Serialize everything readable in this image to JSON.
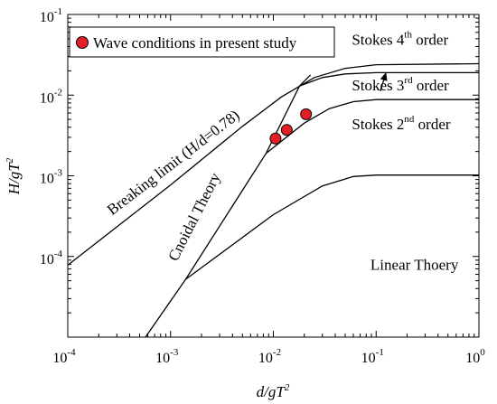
{
  "chart_data": {
    "type": "line",
    "x_axis": {
      "label_base": "d/gT",
      "label_sup": "2",
      "scale": "log",
      "range": [
        0.0001,
        1
      ],
      "ticks": [
        {
          "value": 0.0001,
          "base": "10",
          "exp": "-4"
        },
        {
          "value": 0.001,
          "base": "10",
          "exp": "-3"
        },
        {
          "value": 0.01,
          "base": "10",
          "exp": "-2"
        },
        {
          "value": 0.1,
          "base": "10",
          "exp": "-1"
        },
        {
          "value": 1,
          "base": "10",
          "exp": "0"
        }
      ]
    },
    "y_axis": {
      "label_base": "H/gT",
      "label_sup": "2",
      "scale": "log",
      "range": [
        1e-05,
        0.1
      ],
      "ticks": [
        {
          "value": 0.0001,
          "base": "10",
          "exp": "-4"
        },
        {
          "value": 0.001,
          "base": "10",
          "exp": "-3"
        },
        {
          "value": 0.01,
          "base": "10",
          "exp": "-2"
        },
        {
          "value": 0.1,
          "base": "10",
          "exp": "-1"
        }
      ]
    },
    "grid": false,
    "legend": {
      "position": "top-left",
      "entries": [
        {
          "label": "Wave conditions in present study",
          "marker": "circle",
          "color": "#e31e24"
        }
      ]
    },
    "points": [
      {
        "x": 0.0105,
        "y": 0.0029
      },
      {
        "x": 0.0135,
        "y": 0.0037
      },
      {
        "x": 0.0208,
        "y": 0.0058
      }
    ],
    "curves": [
      {
        "id": "breaking-limit",
        "points": [
          [
            0.0001,
            7.8e-05
          ],
          [
            0.001,
            0.00077
          ],
          [
            0.005,
            0.0041
          ],
          [
            0.012,
            0.0095
          ],
          [
            0.025,
            0.0165
          ],
          [
            0.05,
            0.0215
          ],
          [
            0.1,
            0.0238
          ],
          [
            1,
            0.0245
          ]
        ]
      },
      {
        "id": "stokes-4th-3rd-boundary",
        "points": [
          [
            0.018,
            0.013
          ],
          [
            0.03,
            0.0165
          ],
          [
            0.05,
            0.0183
          ],
          [
            0.1,
            0.019
          ],
          [
            1,
            0.019
          ]
        ]
      },
      {
        "id": "stokes-3rd-2nd-boundary",
        "points": [
          [
            0.0085,
            0.0019
          ],
          [
            0.02,
            0.0045
          ],
          [
            0.035,
            0.0068
          ],
          [
            0.06,
            0.0083
          ],
          [
            0.1,
            0.0088
          ],
          [
            1,
            0.0088
          ]
        ]
      },
      {
        "id": "stokes-2nd-linear-boundary",
        "points": [
          [
            0.0014,
            5.2e-05
          ],
          [
            0.01,
            0.00033
          ],
          [
            0.03,
            0.00075
          ],
          [
            0.06,
            0.00098
          ],
          [
            0.1,
            0.00102
          ],
          [
            1,
            0.00102
          ]
        ]
      },
      {
        "id": "cnoidal-boundary",
        "points": [
          [
            0.00057,
            1e-05
          ],
          [
            0.0014,
            5.2e-05
          ],
          [
            0.0085,
            0.0019
          ],
          [
            0.018,
            0.013
          ],
          [
            0.023,
            0.0178
          ]
        ]
      }
    ],
    "arrow": {
      "from": [
        0.11,
        0.0112
      ],
      "to": [
        0.125,
        0.0192
      ]
    },
    "annotations": [
      {
        "id": "stokes-4th",
        "text_before": "Stokes 4",
        "sup": "th",
        "text_after": " order",
        "x": 0.058,
        "y": 0.042
      },
      {
        "id": "stokes-3rd",
        "text_before": "Stokes 3",
        "sup": "rd",
        "text_after": "  order",
        "x": 0.058,
        "y": 0.0115
      },
      {
        "id": "stokes-2nd",
        "text_before": "Stokes 2",
        "sup": "nd",
        "text_after": "  order",
        "x": 0.058,
        "y": 0.0038
      },
      {
        "id": "linear",
        "text": "Linear Thoery",
        "x": 0.088,
        "y": 6.8e-05
      },
      {
        "id": "breaking",
        "text": "Breaking limit (H/d=0.78)",
        "x": 0.00027,
        "y": 0.00032,
        "rotate": -37.5
      },
      {
        "id": "cnoidal",
        "text": "Cnoidal Theory",
        "x": 0.00115,
        "y": 8.5e-05,
        "rotate": -63
      }
    ]
  }
}
